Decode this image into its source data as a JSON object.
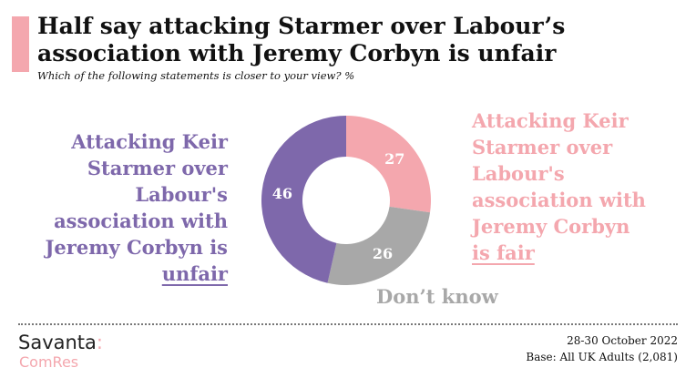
{
  "colors": {
    "accent": "#f4a7ae",
    "unfair": "#7e68ab",
    "dont_know": "#a8a8a8"
  },
  "header": {
    "title_line1": "Half say attacking Starmer over Labour’s",
    "title_line2": "association with Jeremy Corbyn is unfair",
    "subtitle": "Which of the following statements is closer to your view? %"
  },
  "chart_data": {
    "type": "pie",
    "donut": true,
    "slices": [
      {
        "label": "Attacking Keir Starmer over Labour's association with Jeremy Corbyn is fair",
        "value": 27,
        "color": "#f4a7ae"
      },
      {
        "label": "Don’t know",
        "value": 26,
        "color": "#a8a8a8"
      },
      {
        "label": "Attacking Keir Starmer over Labour's association with Jeremy Corbyn is unfair",
        "value": 46,
        "color": "#7e68ab"
      }
    ],
    "value_labels": [
      "27",
      "26",
      "46"
    ]
  },
  "labels": {
    "unfair": {
      "line1": "Attacking Keir",
      "line2": "Starmer over",
      "line3": "Labour's",
      "line4": "association with",
      "line5": "Jeremy Corbyn is",
      "line6": "unfair"
    },
    "fair": {
      "line1": "Attacking Keir",
      "line2": "Starmer over",
      "line3": "Labour's",
      "line4": "association with",
      "line5": "Jeremy Corbyn",
      "line6": "is fair"
    },
    "dont_know": "Don’t know"
  },
  "footer": {
    "brand_name": "Savanta",
    "brand_colon": ":",
    "brand_sub": "ComRes",
    "date": "28-30 October 2022",
    "base": "Base: All UK Adults (2,081)"
  }
}
